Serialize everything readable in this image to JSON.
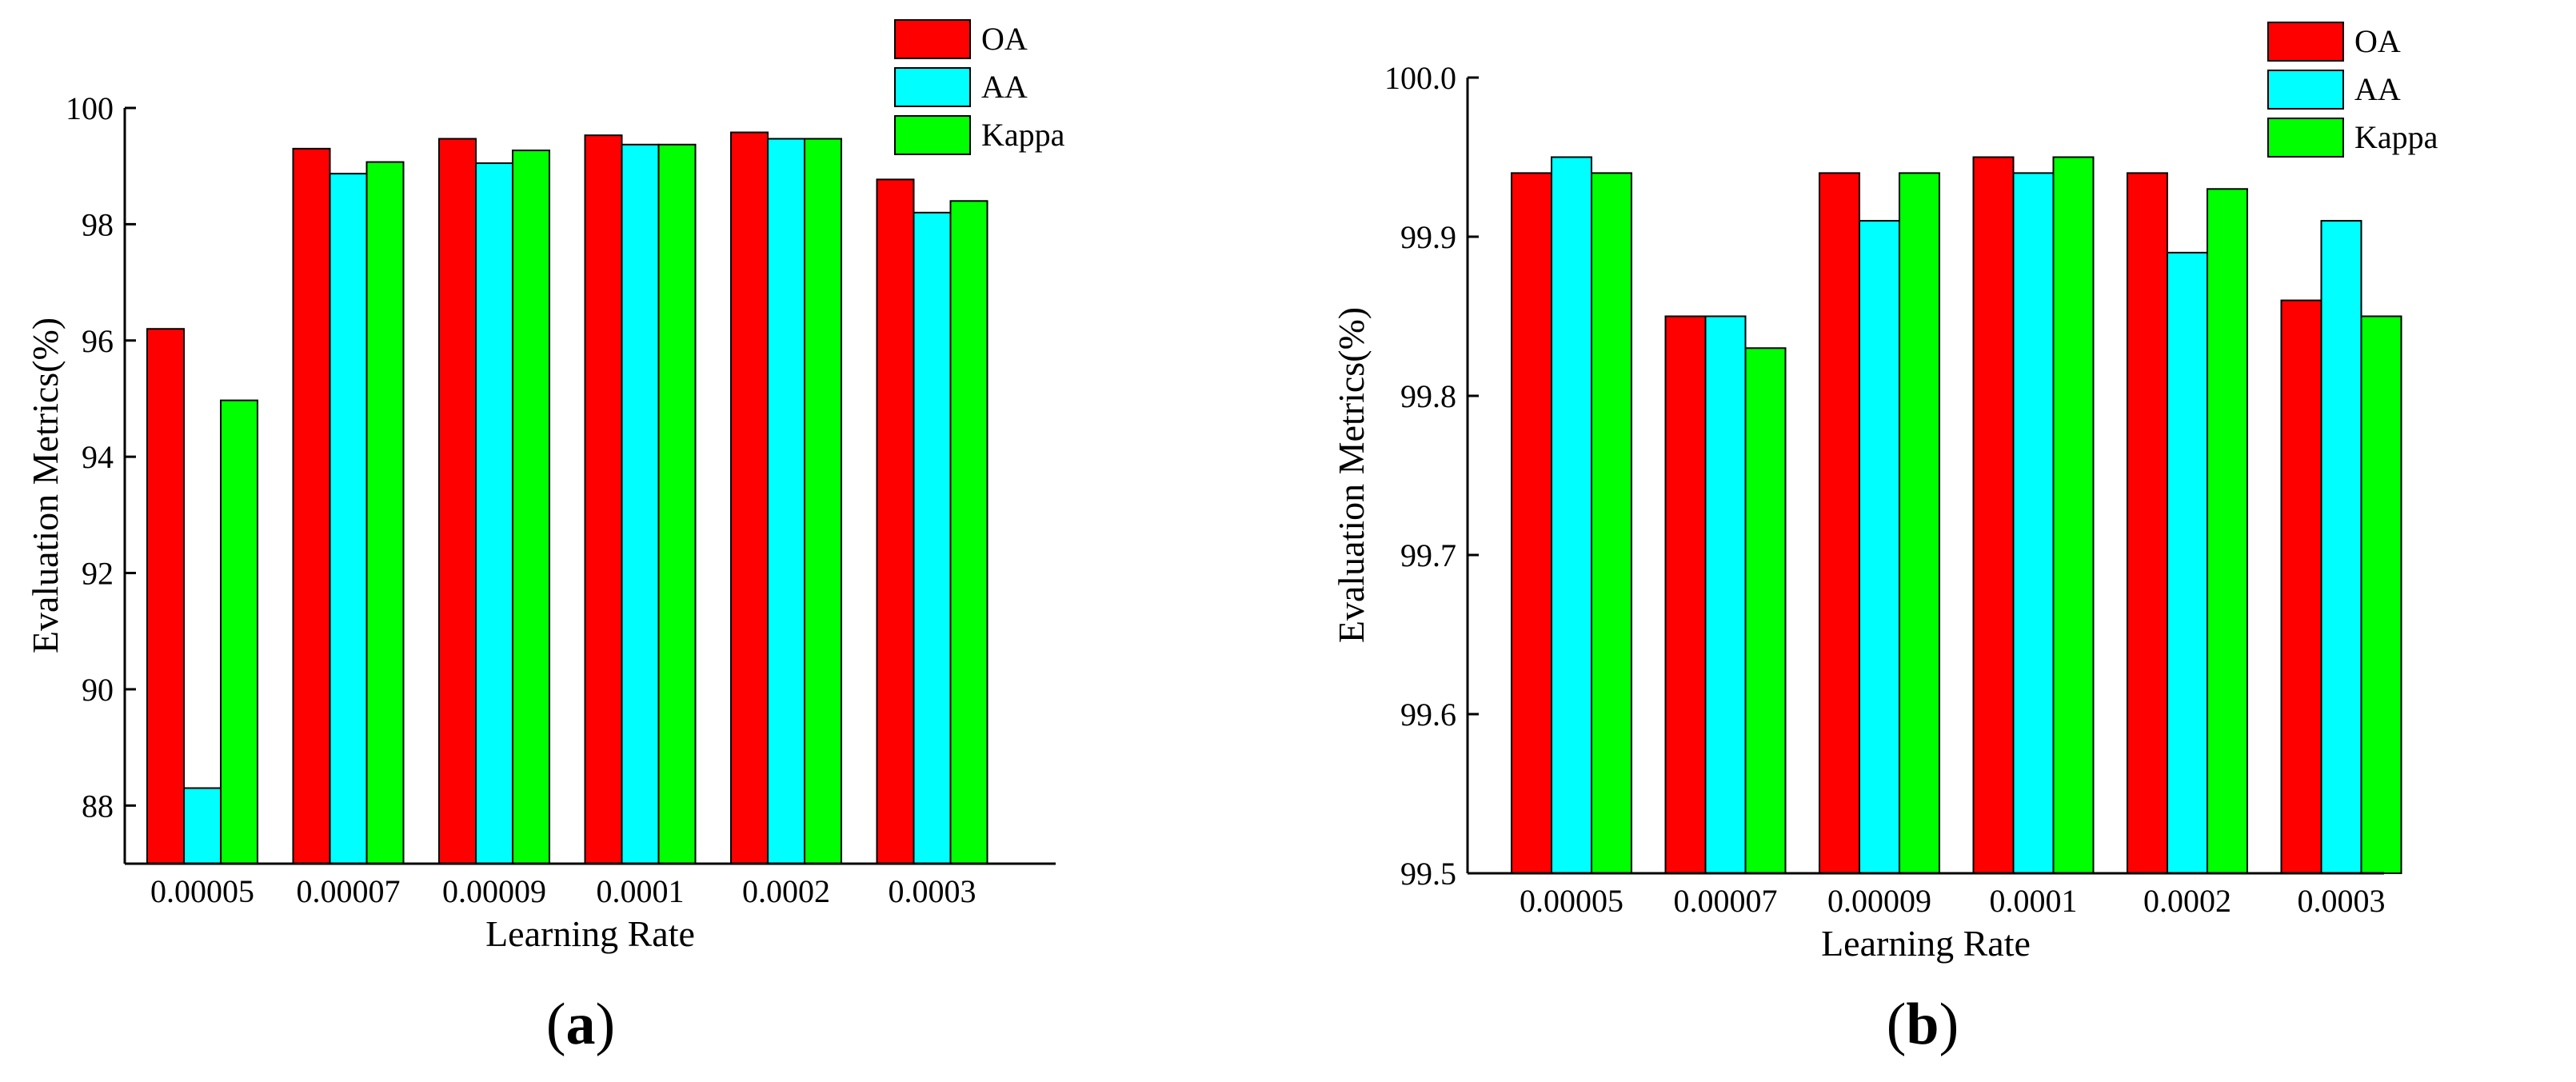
{
  "colors": {
    "OA": "#ff0000",
    "AA": "#00ffff",
    "Kappa": "#00ff00",
    "axis": "#000000"
  },
  "chart_data": [
    {
      "type": "bar",
      "panel_label": {
        "open": "(",
        "letter": "a",
        "close": ")"
      },
      "xlabel": "Learning Rate",
      "ylabel": "Evaluation Metrics(%)",
      "ylim": [
        87,
        100
      ],
      "yticks": [
        88,
        90,
        92,
        94,
        96,
        98,
        100
      ],
      "ytick_labels": [
        "88",
        "90",
        "92",
        "94",
        "96",
        "98",
        "100"
      ],
      "categories": [
        "0.00005",
        "0.00007",
        "0.00009",
        "0.0001",
        "0.0002",
        "0.0003"
      ],
      "legend_position": "top-right",
      "series": [
        {
          "name": "OA",
          "values": [
            96.2,
            99.3,
            99.47,
            99.53,
            99.58,
            98.77
          ]
        },
        {
          "name": "AA",
          "values": [
            88.3,
            98.87,
            99.05,
            99.37,
            99.47,
            98.2
          ]
        },
        {
          "name": "Kappa",
          "values": [
            94.97,
            99.07,
            99.27,
            99.37,
            99.47,
            98.4
          ]
        }
      ]
    },
    {
      "type": "bar",
      "panel_label": {
        "open": "(",
        "letter": "b",
        "close": ")"
      },
      "xlabel": "Learning Rate",
      "ylabel": "Evaluation Metrics(%)",
      "ylim": [
        99.5,
        100.0
      ],
      "yticks": [
        99.5,
        99.6,
        99.7,
        99.8,
        99.9,
        100.0
      ],
      "ytick_labels": [
        "99.5",
        "99.6",
        "99.7",
        "99.8",
        "99.9",
        "100.0"
      ],
      "categories": [
        "0.00005",
        "0.00007",
        "0.00009",
        "0.0001",
        "0.0002",
        "0.0003"
      ],
      "legend_position": "top-right",
      "series": [
        {
          "name": "OA",
          "values": [
            99.94,
            99.85,
            99.94,
            99.95,
            99.94,
            99.86
          ]
        },
        {
          "name": "AA",
          "values": [
            99.95,
            99.85,
            99.91,
            99.94,
            99.89,
            99.91
          ]
        },
        {
          "name": "Kappa",
          "values": [
            99.94,
            99.83,
            99.94,
            99.95,
            99.93,
            99.85
          ]
        }
      ]
    }
  ]
}
